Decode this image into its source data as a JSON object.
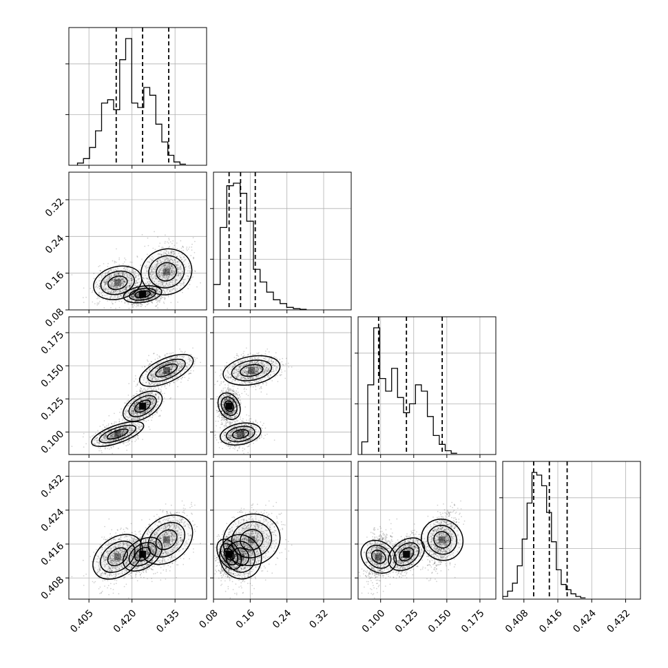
{
  "chart_data": {
    "type": "corner",
    "parameters": [
      {
        "range": [
          0.398,
          0.446
        ],
        "ticks": [
          0.405,
          0.42,
          0.435
        ],
        "tick_labels": [
          "0.405",
          "0.420",
          "0.435"
        ],
        "quantiles": [
          0.4145,
          0.4237,
          0.4328
        ]
      },
      {
        "range": [
          0.08,
          0.38
        ],
        "ticks": [
          0.08,
          0.16,
          0.24,
          0.32
        ],
        "tick_labels": [
          "0.08",
          "0.16",
          "0.24",
          "0.32"
        ],
        "quantiles": [
          0.114,
          0.139,
          0.171
        ]
      },
      {
        "range": [
          0.083,
          0.187
        ],
        "ticks": [
          0.1,
          0.125,
          0.15,
          0.175
        ],
        "tick_labels": [
          "0.100",
          "0.125",
          "0.150",
          "0.175"
        ],
        "quantiles": [
          0.0985,
          0.1195,
          0.1465
        ]
      },
      {
        "range": [
          0.403,
          0.4355
        ],
        "ticks": [
          0.408,
          0.416,
          0.424,
          0.432
        ],
        "tick_labels": [
          "0.408",
          "0.416",
          "0.424",
          "0.432"
        ],
        "quantiles": [
          0.4103,
          0.414,
          0.4182
        ]
      }
    ],
    "histograms": [
      {
        "bin_start": 0.401,
        "bin_width": 0.0021,
        "counts": [
          2,
          6,
          16,
          31,
          56,
          59,
          50,
          95,
          114,
          56,
          52,
          70,
          63,
          37,
          21,
          9,
          3,
          1
        ]
      },
      {
        "bin_start": 0.08,
        "bin_width": 0.0145,
        "counts": [
          20,
          65,
          98,
          100,
          92,
          70,
          32,
          22,
          14,
          8,
          5,
          2,
          1,
          0.5
        ]
      },
      {
        "bin_start": 0.0858,
        "bin_width": 0.0045,
        "counts": [
          10,
          55,
          100,
          60,
          50,
          68,
          45,
          33,
          40,
          55,
          50,
          30,
          15,
          8,
          3,
          1
        ]
      },
      {
        "bin_start": 0.403,
        "bin_width": 0.00115,
        "counts": [
          2,
          6,
          12,
          25,
          45,
          72,
          95,
          93,
          85,
          65,
          43,
          22,
          11,
          7,
          4,
          2,
          1
        ]
      }
    ],
    "density_modes": [
      {
        "x": 0.4237,
        "y": 0.114
      },
      {
        "x": 0.415,
        "y": 0.139
      },
      {
        "x": 0.432,
        "y": 0.163
      }
    ]
  }
}
